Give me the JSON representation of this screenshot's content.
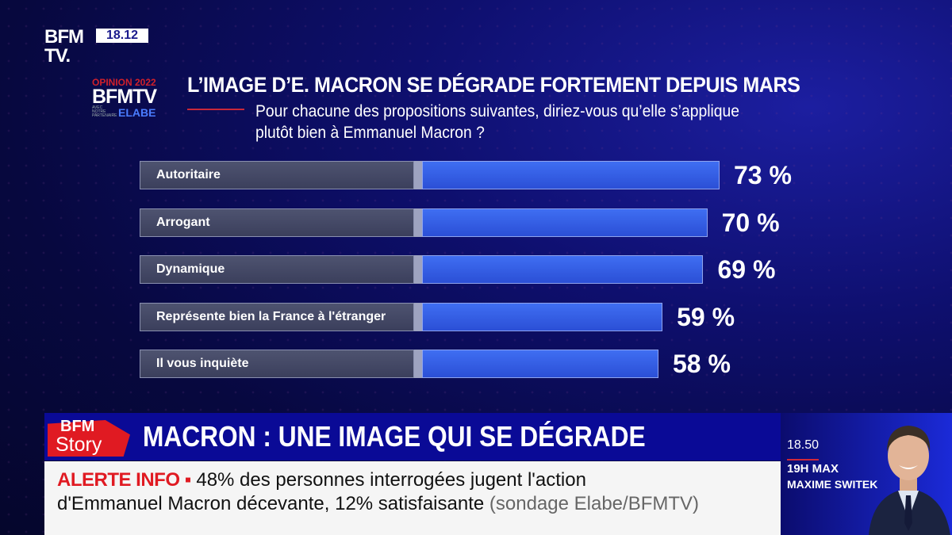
{
  "channel": {
    "logo_line1": "BFM",
    "logo_line2": "TV.",
    "clock": "18.12"
  },
  "opinion_logo": {
    "top": "OPINION 2022",
    "middle": "BFMTV",
    "small": "AVEC NOTRE PARTENAIRE",
    "partner": "ELABE"
  },
  "chart_data": {
    "type": "bar",
    "orientation": "horizontal",
    "title": "L’IMAGE D’E. MACRON SE DÉGRADE FORTEMENT DEPUIS MARS",
    "subtitle_line1": "Pour chacune des propositions suivantes, diriez-vous qu’elle s’applique",
    "subtitle_line2": "plutôt bien à Emmanuel Macron ?",
    "categories": [
      "Autoritaire",
      "Arrogant",
      "Dynamique",
      "Représente bien la France à l'étranger",
      "Il vous inquiète"
    ],
    "values": [
      73,
      70,
      69,
      59,
      58
    ],
    "value_labels": [
      "73 %",
      "70 %",
      "69 %",
      "59 %",
      "58 %"
    ],
    "unit": "%",
    "xlim": [
      0,
      100
    ],
    "grid": false,
    "legend": "none",
    "bar_color": "#3a62ea",
    "label_color": "#474b68"
  },
  "lower_third": {
    "program_logo_line1": "BFM",
    "program_logo_line2": "Story",
    "headline": "MACRON : UNE IMAGE QUI SE DÉGRADE"
  },
  "ticker": {
    "tag": "ALERTE INFO ▪",
    "line1": "48% des personnes interrogées jugent l'action",
    "line2": "d'Emmanuel Macron décevante, 12% satisfaisante",
    "source": "(sondage Elabe/BFMTV)"
  },
  "next_show": {
    "time": "18.50",
    "show": "19H MAX",
    "host": "MAXIME SWITEK"
  },
  "colors": {
    "accent_red": "#e01a22",
    "bar_blue": "#3a62ea",
    "band_blue": "#0a0a96"
  }
}
